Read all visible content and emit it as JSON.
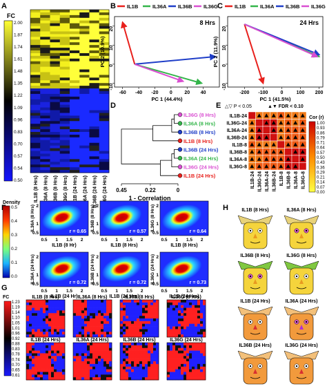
{
  "panels": {
    "A": "A",
    "B": "B",
    "C": "C",
    "D": "D",
    "E": "E",
    "F": "F",
    "G": "G",
    "H": "H"
  },
  "panelA": {
    "colorbar_title": "FC",
    "colorbar_ticks": [
      "2.00",
      "1.87",
      "1.74",
      "1.61",
      "1.48",
      "1.35",
      "1.22",
      "1.09",
      "0.96",
      "0.83",
      "0.70",
      "0.57",
      "0.54",
      "0.50"
    ],
    "columns": [
      "IL1B (8 Hrs)",
      "IL36A (8 Hrs)",
      "IL36B (8 Hrs)",
      "IL36G (8 Hrs)",
      "IL1B (24 Hrs)",
      "IL36A (24 Hrs)",
      "IL36B (24 Hrs)",
      "IL36G (24 Hrs)"
    ]
  },
  "legend": {
    "items": [
      {
        "label": "IL1B",
        "color": "#e8201c"
      },
      {
        "label": "IL36A",
        "color": "#33b54a"
      },
      {
        "label": "IL36B",
        "color": "#1f3ec8"
      },
      {
        "label": "IL36G",
        "color": "#d94fd1"
      }
    ]
  },
  "chart_data": [
    {
      "type": "scatter",
      "panel": "B",
      "annotation": "8 Hrs",
      "xlabel": "PC 1 (44.4%)",
      "ylabel": "PC 2 (10.9%)",
      "xlim": [
        -70,
        60
      ],
      "ylim": [
        -12,
        25
      ],
      "xticks": [
        -60,
        -40,
        -20,
        0,
        20,
        40
      ],
      "yticks": [
        -10,
        0,
        10,
        20
      ],
      "origin": [
        -45,
        0
      ],
      "series": [
        {
          "name": "IL1B",
          "color": "#e8201c",
          "x": -60,
          "y": 22
        },
        {
          "name": "IL36A",
          "color": "#33b54a",
          "x": 38,
          "y": -10
        },
        {
          "name": "IL36B",
          "color": "#1f3ec8",
          "x": 55,
          "y": 4
        },
        {
          "name": "IL36G",
          "color": "#d94fd1",
          "x": 15,
          "y": -9
        }
      ]
    },
    {
      "type": "scatter",
      "panel": "C",
      "annotation": "24 Hrs",
      "xlabel": "PC 1 (41.5%)",
      "ylabel": "PC 2 (11.9%)",
      "xlim": [
        -290,
        220
      ],
      "ylim": [
        -12,
        25
      ],
      "xticks": [
        -200,
        -100,
        0,
        100,
        200
      ],
      "yticks": [
        -10,
        0,
        10,
        20
      ],
      "origin": [
        -200,
        21
      ],
      "series": [
        {
          "name": "IL1B",
          "color": "#e8201c",
          "x": -100,
          "y": -10
        },
        {
          "name": "IL36A",
          "color": "#33b54a",
          "x": 200,
          "y": 4
        },
        {
          "name": "IL36B",
          "color": "#1f3ec8",
          "x": 200,
          "y": 5
        },
        {
          "name": "IL36G",
          "color": "#d94fd1",
          "x": 190,
          "y": 4
        }
      ]
    },
    {
      "type": "heatmap",
      "panel": "E",
      "colorbar_title": "Cor (r)",
      "colorbar_ticks": [
        "1.00",
        "0.93",
        "0.86",
        "0.79",
        "0.71",
        "0.64",
        "0.57",
        "0.50",
        "0.43",
        "0.36",
        "0.29",
        "0.21",
        "0.14",
        "0.07",
        "0.00"
      ],
      "labels": [
        "IL1B-24",
        "IL36G-24",
        "IL36A-24",
        "IL36B-24",
        "IL1B-8",
        "IL36B-8",
        "IL36A-8",
        "IL36G-8"
      ],
      "values": [
        [
          1.0,
          0.6,
          0.58,
          0.55,
          0.7,
          0.5,
          0.52,
          0.5
        ],
        [
          0.6,
          1.0,
          0.95,
          0.94,
          0.55,
          0.62,
          0.6,
          0.63
        ],
        [
          0.58,
          0.95,
          1.0,
          0.96,
          0.54,
          0.63,
          0.62,
          0.64
        ],
        [
          0.55,
          0.94,
          0.96,
          1.0,
          0.53,
          0.64,
          0.61,
          0.62
        ],
        [
          0.7,
          0.55,
          0.54,
          0.53,
          1.0,
          0.62,
          0.64,
          0.63
        ],
        [
          0.5,
          0.62,
          0.63,
          0.64,
          0.62,
          1.0,
          0.93,
          0.92
        ],
        [
          0.52,
          0.6,
          0.62,
          0.61,
          0.64,
          0.93,
          1.0,
          0.94
        ],
        [
          0.5,
          0.63,
          0.64,
          0.62,
          0.63,
          0.92,
          0.94,
          1.0
        ]
      ]
    }
  ],
  "panelD": {
    "xlabel": "1 - Correlation",
    "xticks": [
      "0.45",
      "0.22",
      "0"
    ],
    "leaves": [
      {
        "label": "IL36G (8 Hrs)",
        "color": "#d94fd1"
      },
      {
        "label": "IL36A (8 Hrs)",
        "color": "#33b54a"
      },
      {
        "label": "IL36B (8 Hrs)",
        "color": "#1f3ec8"
      },
      {
        "label": "IL1B (8 Hrs)",
        "color": "#e8201c"
      },
      {
        "label": "IL36B (24 Hrs)",
        "color": "#1f3ec8"
      },
      {
        "label": "IL36A (24 Hrs)",
        "color": "#33b54a"
      },
      {
        "label": "IL36G (24 Hrs)",
        "color": "#d94fd1"
      },
      {
        "label": "IL1B (24 Hrs)",
        "color": "#e8201c"
      }
    ]
  },
  "panelE": {
    "legend_open": "△▽ P < 0.05",
    "legend_filled": "▲▼ FDR < 0.10"
  },
  "panelF": {
    "colorbar_title": "Density",
    "colorbar_ticks": [
      "0.5",
      "0.4",
      "0.3",
      "0.2",
      "0.1",
      "0.0"
    ],
    "axis_ticks": [
      "0.5",
      "1",
      "1.5",
      "2"
    ],
    "plots": [
      {
        "xlabel": "IL1B (8 Hr)",
        "ylabel": "IL36A (8 Hrs)",
        "r": "r = 0.65"
      },
      {
        "xlabel": "IL1B (8 Hrs)",
        "ylabel": "IL36B (8 Hrs)",
        "r": "r = 0.57"
      },
      {
        "xlabel": "IL1B (8 Hrs)",
        "ylabel": "IL36G (8 Hrs)",
        "r": "r = 0.64"
      },
      {
        "xlabel": "IL1B (24 Hr)",
        "ylabel": "IL36A (24 Hrs)",
        "r": "r = 0.72"
      },
      {
        "xlabel": "IL1B (24 Hrs)",
        "ylabel": "IL36B (24 Hrs)",
        "r": "r = 0.72"
      },
      {
        "xlabel": "IL1B (24 Hrs)",
        "ylabel": "IL36G (24 Hrs)",
        "r": "r = 0.73"
      }
    ]
  },
  "panelG": {
    "colorbar_title": "FC",
    "colorbar_ticks": [
      "1.23",
      "1.19",
      "1.14",
      "1.10",
      "1.05",
      "1.01",
      "0.96",
      "0.92",
      "0.88",
      "0.83",
      "0.78",
      "0.74",
      "0.70",
      "0.65",
      "0.61"
    ],
    "titles": [
      "IL1B (8 Hrs)",
      "IL36A (8 Hrs)",
      "IL36B (8 Hrs)",
      "IL36G (8 Hrs)",
      "IL1B (24 Hrs)",
      "IL36A (24 Hrs)",
      "IL36B (24 Hrs)",
      "IL36G (24 Hrs)"
    ]
  },
  "panelH": {
    "faces": [
      {
        "label": "IL1B (8 Hrs)"
      },
      {
        "label": "IL36A (8 Hrs)"
      },
      {
        "label": "IL36B (8 Hrs)"
      },
      {
        "label": "IL36G (8 Hrs)"
      },
      {
        "label": "IL1B (24 Hrs)"
      },
      {
        "label": "IL36A (24 Hrs)"
      },
      {
        "label": "IL36B (24 Hrs)"
      },
      {
        "label": "IL36G (24 Hrs)"
      }
    ]
  }
}
